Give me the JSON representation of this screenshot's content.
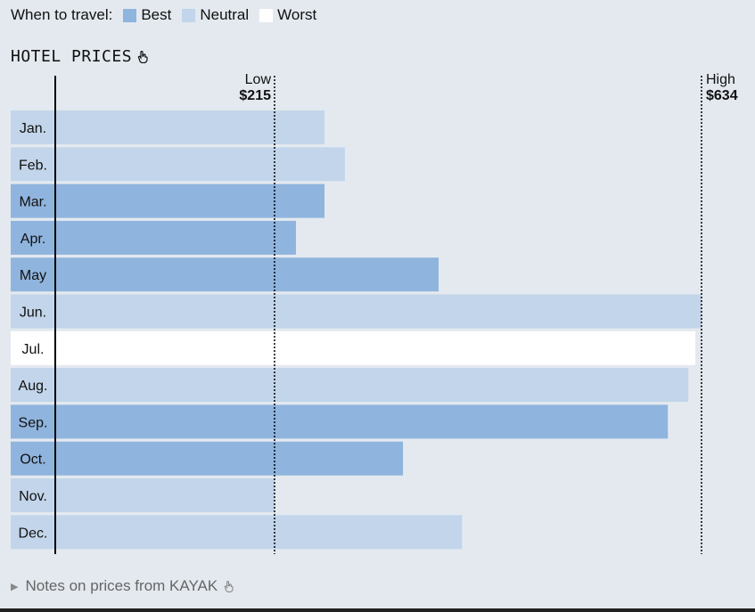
{
  "legend": {
    "label": "When to travel:",
    "items": [
      {
        "name": "Best",
        "color": "#8fb4de"
      },
      {
        "name": "Neutral",
        "color": "#c2d5ea"
      },
      {
        "name": "Worst",
        "color": "#ffffff"
      }
    ]
  },
  "title": "HOTEL PRICES",
  "markers": {
    "low": {
      "label": "Low",
      "value_text": "$215"
    },
    "high": {
      "label": "High",
      "value_text": "$634"
    }
  },
  "footer": {
    "text": "Notes on prices from KAYAK"
  },
  "chart_data": {
    "type": "bar",
    "orientation": "horizontal",
    "title": "HOTEL PRICES",
    "categories": [
      "Jan.",
      "Feb.",
      "Mar.",
      "Apr.",
      "May",
      "Jun.",
      "Jul.",
      "Aug.",
      "Sep.",
      "Oct.",
      "Nov.",
      "Dec."
    ],
    "values": [
      264,
      284,
      264,
      236,
      376,
      634,
      628,
      621,
      601,
      341,
      215,
      399
    ],
    "travel_rating": [
      "Neutral",
      "Neutral",
      "Best",
      "Best",
      "Best",
      "Neutral",
      "Worst",
      "Neutral",
      "Best",
      "Best",
      "Neutral",
      "Neutral"
    ],
    "colors": {
      "Best": "#8fb4de",
      "Neutral": "#c2d5ea",
      "Worst": "#ffffff"
    },
    "reference_lines": [
      {
        "label": "Low",
        "value": 215
      },
      {
        "label": "High",
        "value": 634
      }
    ],
    "xlim": [
      0,
      634
    ],
    "grid": false
  }
}
